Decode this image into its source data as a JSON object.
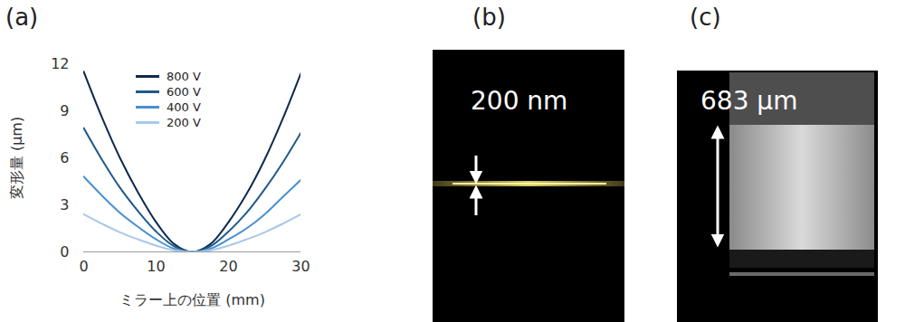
{
  "chart_data": {
    "type": "line",
    "title": "(a)",
    "x_label": "ミラー上の位置 (mm)",
    "y_label": "変形量 (μm)",
    "x": [
      0,
      2.5,
      5,
      7.5,
      10,
      12.5,
      15,
      17.5,
      20,
      22.5,
      25,
      27.5,
      30
    ],
    "series": [
      {
        "name": "800 V",
        "color": "#0d2b4e",
        "values": [
          11.5,
          8.6,
          6.0,
          3.8,
          1.9,
          0.5,
          0,
          0.5,
          1.9,
          3.7,
          5.9,
          8.5,
          11.4
        ]
      },
      {
        "name": "600 V",
        "color": "#1f5a8c",
        "values": [
          7.9,
          5.9,
          4.1,
          2.6,
          1.3,
          0.35,
          0,
          0.35,
          1.3,
          2.5,
          4.0,
          5.7,
          7.6
        ]
      },
      {
        "name": "400 V",
        "color": "#4a8fd0",
        "values": [
          4.8,
          3.6,
          2.5,
          1.6,
          0.8,
          0.2,
          0,
          0.2,
          0.8,
          1.5,
          2.4,
          3.5,
          4.6
        ]
      },
      {
        "name": "200 V",
        "color": "#a8c8ea",
        "values": [
          2.4,
          1.8,
          1.25,
          0.8,
          0.4,
          0.1,
          0,
          0.1,
          0.4,
          0.8,
          1.25,
          1.8,
          2.4
        ]
      }
    ],
    "xlim": [
      0,
      30
    ],
    "xticks": [
      0,
      10,
      20,
      30
    ],
    "ylim": [
      0,
      12
    ],
    "yticks": [
      0,
      3,
      6,
      9,
      12
    ],
    "grid": false,
    "legend": "top"
  },
  "images": [
    {
      "label": "(b)",
      "annotation": "200 nm"
    },
    {
      "label": "(c)",
      "annotation": "683 μm"
    }
  ]
}
